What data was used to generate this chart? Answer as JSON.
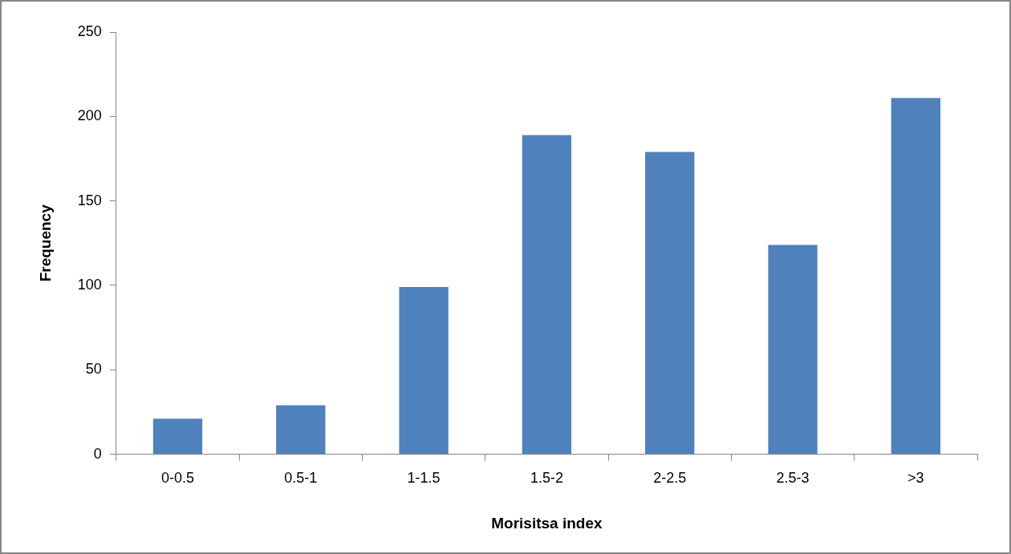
{
  "chart_data": {
    "type": "bar",
    "xlabel": "Morisitsa index",
    "ylabel": "Frequency",
    "categories": [
      "0-0.5",
      "0.5-1",
      "1-1.5",
      "1.5-2",
      "2-2.5",
      "2.5-3",
      ">3"
    ],
    "values": [
      21,
      29,
      99,
      189,
      179,
      124,
      211
    ],
    "color": "#4f81bd",
    "ylim": [
      0,
      250
    ],
    "yticks": [
      0,
      50,
      100,
      150,
      200,
      250
    ]
  }
}
